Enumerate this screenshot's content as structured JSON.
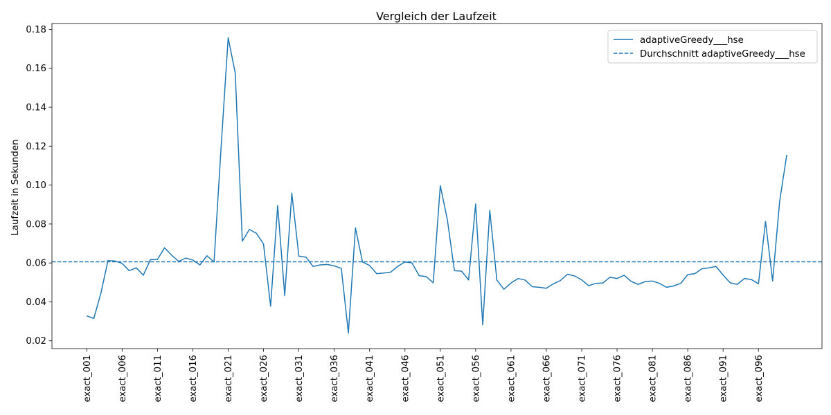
{
  "chart_data": {
    "type": "line",
    "title": "Vergleich der Laufzeit",
    "xlabel": "",
    "ylabel": "Laufzeit in Sekunden",
    "ylim": [
      0.016,
      0.183
    ],
    "yticks": [
      0.02,
      0.04,
      0.06,
      0.08,
      0.1,
      0.12,
      0.14,
      0.16,
      0.18
    ],
    "ytick_labels": [
      "0.02",
      "0.04",
      "0.06",
      "0.08",
      "0.10",
      "0.12",
      "0.14",
      "0.16",
      "0.18"
    ],
    "xtick_labels": [
      "exact_001",
      "exact_006",
      "exact_011",
      "exact_016",
      "exact_021",
      "exact_026",
      "exact_031",
      "exact_036",
      "exact_041",
      "exact_046",
      "exact_051",
      "exact_056",
      "exact_061",
      "exact_066",
      "exact_071",
      "exact_076",
      "exact_081",
      "exact_086",
      "exact_091",
      "exact_096"
    ],
    "legend_position": "top-right",
    "grid": false,
    "series": [
      {
        "name": "adaptiveGreedy___hse",
        "color": "#1f77b4",
        "style": "solid",
        "values": [
          0.0328,
          0.0315,
          0.0445,
          0.0612,
          0.061,
          0.0598,
          0.056,
          0.0575,
          0.0537,
          0.0617,
          0.0618,
          0.0678,
          0.064,
          0.0608,
          0.0625,
          0.0615,
          0.059,
          0.0637,
          0.0605,
          0.1195,
          0.1757,
          0.1575,
          0.0712,
          0.0772,
          0.0752,
          0.0697,
          0.0378,
          0.0895,
          0.0432,
          0.0958,
          0.0635,
          0.063,
          0.0582,
          0.059,
          0.0592,
          0.0585,
          0.0572,
          0.024,
          0.078,
          0.0605,
          0.0587,
          0.0545,
          0.0548,
          0.0553,
          0.0583,
          0.0605,
          0.06,
          0.0535,
          0.053,
          0.0498,
          0.0997,
          0.0822,
          0.056,
          0.0558,
          0.0513,
          0.0903,
          0.0282,
          0.087,
          0.0512,
          0.0465,
          0.0497,
          0.052,
          0.0512,
          0.0478,
          0.0475,
          0.047,
          0.0493,
          0.051,
          0.0542,
          0.0533,
          0.0513,
          0.0483,
          0.0495,
          0.0497,
          0.0527,
          0.052,
          0.0537,
          0.0505,
          0.049,
          0.0505,
          0.0507,
          0.0495,
          0.0475,
          0.0482,
          0.0495,
          0.054,
          0.0545,
          0.057,
          0.0575,
          0.0582,
          0.0538,
          0.0498,
          0.049,
          0.052,
          0.0515,
          0.0493,
          0.0813,
          0.0508,
          0.0917,
          0.1155
        ]
      },
      {
        "name": "Durchschnitt adaptiveGreedy___hse",
        "color": "#1f77b4",
        "style": "dashed",
        "value": 0.0606
      }
    ]
  }
}
